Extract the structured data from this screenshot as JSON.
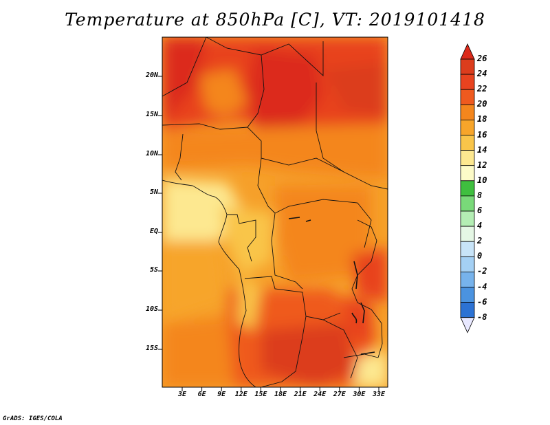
{
  "title": "Temperature at 850hPa [C], VT: 2019101418",
  "credit": "GrADS: IGES/COLA",
  "map": {
    "lat_labels": [
      "20N",
      "15N",
      "10N",
      "5N",
      "EQ",
      "5S",
      "10S",
      "15S"
    ],
    "lon_labels": [
      "3E",
      "6E",
      "9E",
      "12E",
      "15E",
      "18E",
      "21E",
      "24E",
      "27E",
      "30E",
      "33E"
    ],
    "variable": "Temperature at 850hPa",
    "units": "C",
    "region": "Central Africa"
  },
  "colorbar": {
    "labels": [
      "26",
      "24",
      "22",
      "20",
      "18",
      "16",
      "14",
      "12",
      "10",
      "8",
      "6",
      "4",
      "2",
      "0",
      "-2",
      "-4",
      "-6",
      "-8"
    ],
    "colors": [
      "#dc3d1d",
      "#e8431f",
      "#ef5a1f",
      "#f4861d",
      "#f7a52a",
      "#f9c54a",
      "#fde890",
      "#fdfbc8",
      "#3fbf3f",
      "#79d979",
      "#b4eeb4",
      "#e5f7e5",
      "#c8e4f8",
      "#a4d0f4",
      "#77b3ec",
      "#4b93e0",
      "#2c72d4",
      "#1d55c1",
      "#1240a8",
      "#0a2c8c",
      "#061c63"
    ],
    "arrow_top_color": "#dc2a1a",
    "arrow_bottom_color": "#e8e8ff"
  }
}
